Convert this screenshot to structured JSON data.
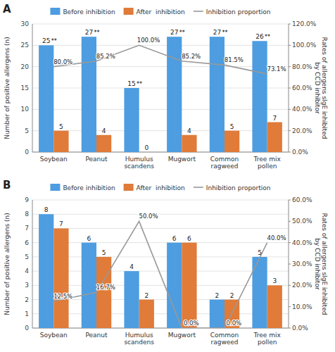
{
  "chart_data": [
    {
      "type": "bar",
      "title": "A",
      "categories": [
        "Soybean",
        "Peanut",
        "Humulus\nscandens",
        "Mugwort",
        "Common\nragweed",
        "Tree mix\npollen"
      ],
      "series": [
        {
          "name": "Before inhibition",
          "color": "#4d9de0",
          "values": [
            25,
            27,
            15,
            27,
            27,
            26
          ]
        },
        {
          "name": "After  inhibition",
          "color": "#e07b39",
          "values": [
            5,
            4,
            0,
            4,
            5,
            7
          ]
        },
        {
          "name": "Inhibition proportion",
          "type": "line",
          "axis": "y2",
          "color": "#999999",
          "values": [
            80.0,
            85.2,
            100.0,
            85.2,
            81.5,
            73.1
          ],
          "value_labels": [
            "80.0%",
            "85.2%",
            "100.0%",
            "85.2%",
            "81.5%",
            "73.1%"
          ]
        }
      ],
      "ylim": [
        0,
        30
      ],
      "yticks": [
        0,
        5,
        10,
        15,
        20,
        25,
        30
      ],
      "y2lim": [
        0,
        120.0
      ],
      "y2ticks": [
        {
          "value": 0.0,
          "label": "0.0%"
        },
        {
          "value": 20.0,
          "label": "20.0%"
        },
        {
          "value": 40.0,
          "label": "40.0%"
        },
        {
          "value": 60.0,
          "label": "60.0%"
        },
        {
          "value": 80.0,
          "label": "80.0%"
        },
        {
          "value": 100.0,
          "label": "100.0%"
        },
        {
          "value": 120.0,
          "label": "120.0%"
        }
      ],
      "ylabel": "Number of positive allergens (n)",
      "y2label": "Rates of allergens sIgE inhibited\nby CCD inhibitor",
      "annotations": [
        {
          "text": "**",
          "series": "Before inhibition",
          "category": "Soybean"
        },
        {
          "text": "**",
          "series": "Before inhibition",
          "category": "Peanut"
        },
        {
          "text": "**",
          "series": "Before inhibition",
          "category": "Humulus\nscandens"
        },
        {
          "text": "**",
          "series": "Before inhibition",
          "category": "Mugwort"
        },
        {
          "text": "**",
          "series": "Before inhibition",
          "category": "Common\nragweed"
        },
        {
          "text": "**",
          "series": "Before inhibition",
          "category": "Tree mix\npollen"
        }
      ],
      "grid": true,
      "data_labels": true,
      "legend": "top"
    },
    {
      "type": "bar",
      "title": "B",
      "categories": [
        "Soybean",
        "Peanut",
        "Humulus\nscandens",
        "Mugwort",
        "Common\nragweed",
        "Tree mix\npollen"
      ],
      "series": [
        {
          "name": "Before inhibition",
          "color": "#4d9de0",
          "values": [
            8,
            6,
            4,
            6,
            2,
            5
          ]
        },
        {
          "name": "After  inhibition",
          "color": "#e07b39",
          "values": [
            7,
            5,
            2,
            6,
            2,
            3
          ]
        },
        {
          "name": "Inhibition proportion",
          "type": "line",
          "axis": "y2",
          "color": "#999999",
          "values": [
            12.5,
            16.7,
            50.0,
            0.0,
            0.0,
            40.0
          ],
          "value_labels": [
            "12.5%",
            "16.7%",
            "50.0%",
            "0.0%",
            "0.0%",
            "40.0%"
          ]
        }
      ],
      "ylim": [
        0,
        9
      ],
      "yticks": [
        0,
        1,
        2,
        3,
        4,
        5,
        6,
        7,
        8,
        9
      ],
      "y2lim": [
        0,
        60.0
      ],
      "y2ticks": [
        {
          "value": 0.0,
          "label": "0.0%"
        },
        {
          "value": 10.0,
          "label": "10.0%"
        },
        {
          "value": 20.0,
          "label": "20.0%"
        },
        {
          "value": 30.0,
          "label": "30.0%"
        },
        {
          "value": 40.0,
          "label": "40.0%"
        },
        {
          "value": 50.0,
          "label": "50.0%"
        },
        {
          "value": 60.0,
          "label": "60.0%"
        }
      ],
      "ylabel": "Number of positive allergens (n)",
      "y2label": "Rates of allergens sIgE inhibited\nby CCD inhibitor",
      "grid": true,
      "data_labels": true,
      "legend": "top"
    }
  ]
}
